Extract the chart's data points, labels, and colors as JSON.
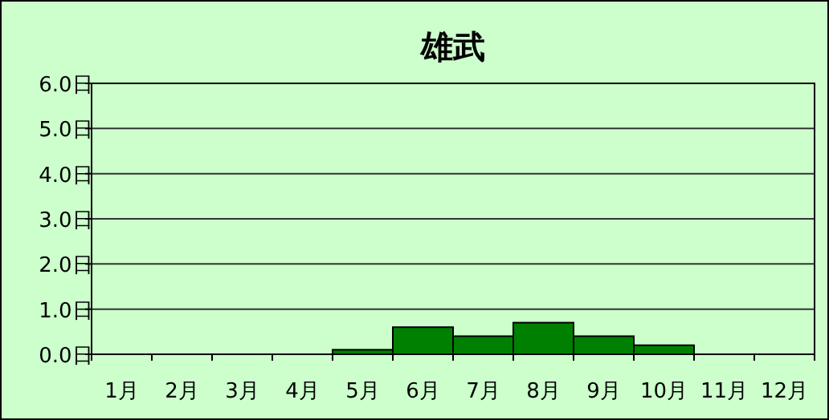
{
  "chart_data": {
    "type": "bar",
    "title": "雄武",
    "categories": [
      "1月",
      "2月",
      "3月",
      "4月",
      "5月",
      "6月",
      "7月",
      "8月",
      "9月",
      "10月",
      "11月",
      "12月"
    ],
    "values": [
      0,
      0,
      0,
      0,
      0.1,
      0.6,
      0.4,
      0.7,
      0.4,
      0.2,
      0,
      0
    ],
    "color": "#008000",
    "ylim": [
      0,
      6
    ],
    "yticks": [
      {
        "value": 0,
        "label": "0.0日"
      },
      {
        "value": 1,
        "label": "1.0日"
      },
      {
        "value": 2,
        "label": "2.0日"
      },
      {
        "value": 3,
        "label": "3.0日"
      },
      {
        "value": 4,
        "label": "4.0日"
      },
      {
        "value": 5,
        "label": "5.0日"
      },
      {
        "value": 6,
        "label": "6.0日"
      }
    ],
    "grid": "y"
  }
}
